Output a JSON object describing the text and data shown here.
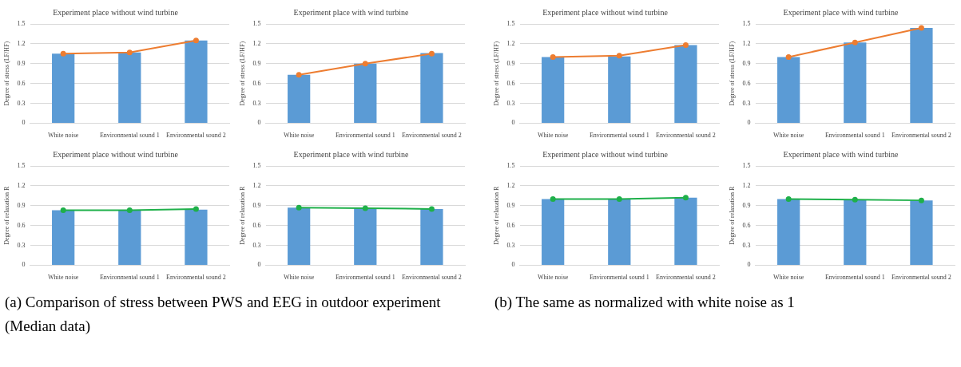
{
  "chart_data": [
    {
      "type": "bar",
      "title": "Experiment place without wind turbine",
      "ylabel": "Degree of stress (LF/HF)",
      "categories": [
        "White noise",
        "Environmental sound 1",
        "Environmental sound 2"
      ],
      "series": [
        {
          "color": "#5b9bd5",
          "values": [
            1.05,
            1.07,
            1.25
          ]
        },
        {
          "type": "line",
          "color": "#ed7d31",
          "values": [
            1.05,
            1.07,
            1.25
          ]
        }
      ],
      "ylim": [
        0,
        1.5
      ],
      "yticks": [
        0,
        0.3,
        0.6,
        0.9,
        1.2,
        1.5
      ],
      "grid": "y",
      "legend": false,
      "marker": "circle",
      "annotations": [
        "(a)  Comparison of stress between PWS and EEG in outdoor experiment (Median data)"
      ]
    },
    {
      "type": "bar",
      "title": "Experiment place with wind turbine",
      "ylabel": "Degree of stress (LF/HF)",
      "categories": [
        "White noise",
        "Environmental sound 1",
        "Environmental sound 2"
      ],
      "series": [
        {
          "color": "#5b9bd5",
          "values": [
            0.73,
            0.9,
            1.06
          ]
        },
        {
          "type": "line",
          "color": "#ed7d31",
          "values": [
            0.73,
            0.9,
            1.05
          ]
        }
      ],
      "ylim": [
        0,
        1.5
      ],
      "yticks": [
        0,
        0.3,
        0.6,
        0.9,
        1.2,
        1.5
      ],
      "grid": "y",
      "legend": false,
      "marker": "circle"
    },
    {
      "type": "bar",
      "title": "Experiment place without wind turbine",
      "ylabel": "Degree of relaxation R",
      "categories": [
        "White noise",
        "Environmental sound 1",
        "Environmental sound 2"
      ],
      "series": [
        {
          "color": "#5b9bd5",
          "values": [
            0.83,
            0.83,
            0.84
          ]
        },
        {
          "type": "line",
          "color": "#1fb04a",
          "values": [
            0.83,
            0.83,
            0.85
          ]
        }
      ],
      "ylim": [
        0,
        1.5
      ],
      "yticks": [
        0,
        0.3,
        0.6,
        0.9,
        1.2,
        1.5
      ],
      "grid": "y",
      "legend": false,
      "marker": "circle"
    },
    {
      "type": "bar",
      "title": "Experiment place with wind turbine",
      "ylabel": "Degree of relaxation R",
      "categories": [
        "White noise",
        "Environmental sound 1",
        "Environmental sound 2"
      ],
      "series": [
        {
          "color": "#5b9bd5",
          "values": [
            0.87,
            0.86,
            0.85
          ]
        },
        {
          "type": "line",
          "color": "#1fb04a",
          "values": [
            0.87,
            0.86,
            0.85
          ]
        }
      ],
      "ylim": [
        0,
        1.5
      ],
      "yticks": [
        0,
        0.3,
        0.6,
        0.9,
        1.2,
        1.5
      ],
      "grid": "y",
      "legend": false,
      "marker": "circle"
    },
    {
      "type": "bar",
      "title": "Experiment place without wind turbine",
      "ylabel": "Degree of stress (LF/HF)",
      "categories": [
        "White noise",
        "Environmental sound 1",
        "Environmental sound 2"
      ],
      "series": [
        {
          "color": "#5b9bd5",
          "values": [
            1.0,
            1.01,
            1.18
          ]
        },
        {
          "type": "line",
          "color": "#ed7d31",
          "values": [
            1.0,
            1.02,
            1.18
          ]
        }
      ],
      "ylim": [
        0,
        1.5
      ],
      "yticks": [
        0,
        0.3,
        0.6,
        0.9,
        1.2,
        1.5
      ],
      "grid": "y",
      "legend": false,
      "marker": "circle",
      "annotations": [
        "(b) The same as normalized with white noise as 1"
      ]
    },
    {
      "type": "bar",
      "title": "Experiment place with wind turbine",
      "ylabel": "Degree of stress (LF/HF)",
      "categories": [
        "White noise",
        "Environmental sound 1",
        "Environmental sound 2"
      ],
      "series": [
        {
          "color": "#5b9bd5",
          "values": [
            1.0,
            1.22,
            1.44
          ]
        },
        {
          "type": "line",
          "color": "#ed7d31",
          "values": [
            1.0,
            1.22,
            1.44
          ]
        }
      ],
      "ylim": [
        0,
        1.5
      ],
      "yticks": [
        0,
        0.3,
        0.6,
        0.9,
        1.2,
        1.5
      ],
      "grid": "y",
      "legend": false,
      "marker": "circle"
    },
    {
      "type": "bar",
      "title": "Experiment place without wind turbine",
      "ylabel": "Degree of relaxation R",
      "categories": [
        "White noise",
        "Environmental sound 1",
        "Environmental sound 2"
      ],
      "series": [
        {
          "color": "#5b9bd5",
          "values": [
            1.0,
            1.0,
            1.02
          ]
        },
        {
          "type": "line",
          "color": "#1fb04a",
          "values": [
            1.0,
            1.0,
            1.02
          ]
        }
      ],
      "ylim": [
        0,
        1.5
      ],
      "yticks": [
        0,
        0.3,
        0.6,
        0.9,
        1.2,
        1.5
      ],
      "grid": "y",
      "legend": false,
      "marker": "circle"
    },
    {
      "type": "bar",
      "title": "Experiment place with wind turbine",
      "ylabel": "Degree of relaxation R",
      "categories": [
        "White noise",
        "Environmental sound 1",
        "Environmental sound 2"
      ],
      "series": [
        {
          "color": "#5b9bd5",
          "values": [
            1.0,
            0.99,
            0.98
          ]
        },
        {
          "type": "line",
          "color": "#1fb04a",
          "values": [
            1.0,
            0.99,
            0.98
          ]
        }
      ],
      "ylim": [
        0,
        1.5
      ],
      "yticks": [
        0,
        0.3,
        0.6,
        0.9,
        1.2,
        1.5
      ],
      "grid": "y",
      "legend": false,
      "marker": "circle"
    }
  ]
}
